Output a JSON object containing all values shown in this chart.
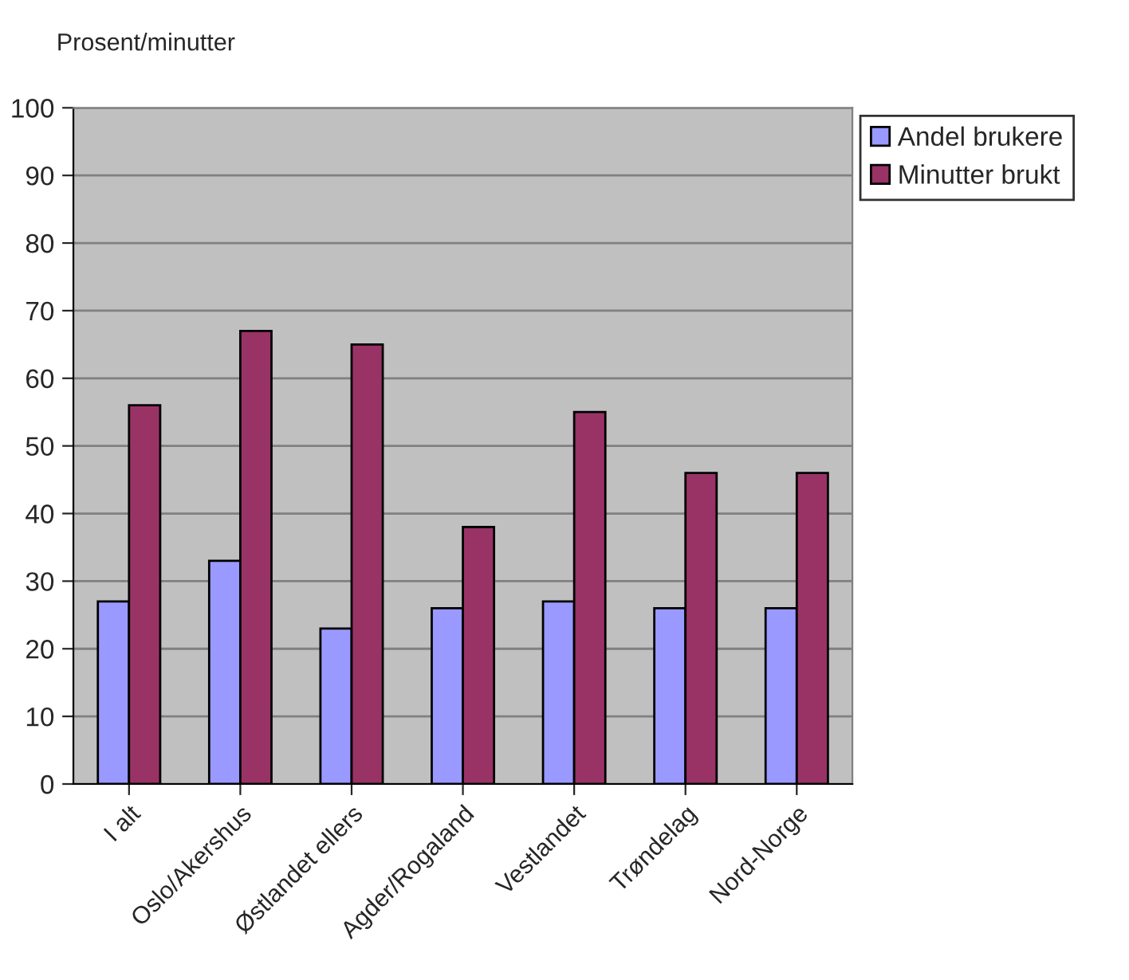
{
  "chart_data": {
    "type": "bar",
    "ylabel": "Prosent/minutter",
    "categories": [
      "I alt",
      "Oslo/Akershus",
      "Østlandet ellers",
      "Agder/Rogaland",
      "Vestlandet",
      "Trøndelag",
      "Nord-Norge"
    ],
    "series": [
      {
        "name": "Andel brukere",
        "color": "#9999ff",
        "values": [
          27,
          33,
          23,
          26,
          27,
          26,
          26
        ]
      },
      {
        "name": "Minutter brukt",
        "color": "#993366",
        "values": [
          56,
          67,
          65,
          38,
          55,
          46,
          46
        ]
      }
    ],
    "ylim": [
      0,
      100
    ],
    "yticks": [
      0,
      10,
      20,
      30,
      40,
      50,
      60,
      70,
      80,
      90,
      100
    ],
    "grid": "y",
    "legend": "top right"
  }
}
